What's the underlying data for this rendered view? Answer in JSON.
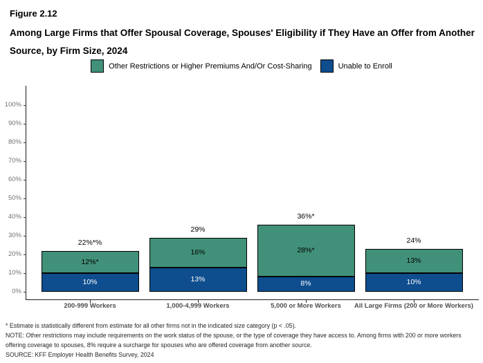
{
  "header": {
    "figure_label": "Figure 2.12",
    "title": "Among Large Firms that Offer Spousal Coverage, Spouses' Eligibility if They Have an Offer from Another Source, by Firm Size, 2024"
  },
  "legend": {
    "items": [
      {
        "label": "Other Restrictions or Higher Premiums And/Or Cost-Sharing",
        "color": "#41907A"
      },
      {
        "label": "Unable to Enroll",
        "color": "#0E4D8E"
      }
    ]
  },
  "chart_data": {
    "type": "bar",
    "stacked": true,
    "title": "Among Large Firms that Offer Spousal Coverage, Spouses' Eligibility if They Have an Offer from Another Source, by Firm Size, 2024",
    "categories": [
      "200-999 Workers",
      "1,000-4,999 Workers",
      "5,000 or More Workers",
      "All Large Firms (200 or More Workers)"
    ],
    "series": [
      {
        "name": "Unable to Enroll",
        "color": "#0E4D8E",
        "values": [
          10,
          13,
          8,
          10
        ],
        "data_labels": [
          "10%",
          "13%",
          "8%",
          "10%"
        ],
        "label_color": "#FFFFFF"
      },
      {
        "name": "Other Restrictions or Higher Premiums And/Or Cost-Sharing",
        "color": "#41907A",
        "values": [
          12,
          16,
          28,
          13
        ],
        "data_labels": [
          "12%*",
          "16%",
          "28%*",
          "13%"
        ],
        "label_color": "#000000"
      }
    ],
    "totals": [
      "22%*%",
      "29%",
      "36%*",
      "24%"
    ],
    "xlabel": "",
    "ylabel": "",
    "ylim": [
      0,
      100
    ],
    "ytick_labels": [
      "0%",
      "10%",
      "20%",
      "30%",
      "40%",
      "50%",
      "60%",
      "70%",
      "80%",
      "90%",
      "100%"
    ],
    "legend_position": "top",
    "grid": false
  },
  "footnotes": {
    "asterisk": "* Estimate is statistically different from estimate for all other firms not in the indicated size category (p < .05).",
    "note": "NOTE: Other restrictions may include requirements on the work status of the spouse, or the type of coverage they have access to. Among firms with 200 or more workers offering coverage to spouses, 8% require a surcharge for spouses who are offered coverage from another source.",
    "source": "SOURCE: KFF Employer Health Benefits Survey, 2024"
  }
}
